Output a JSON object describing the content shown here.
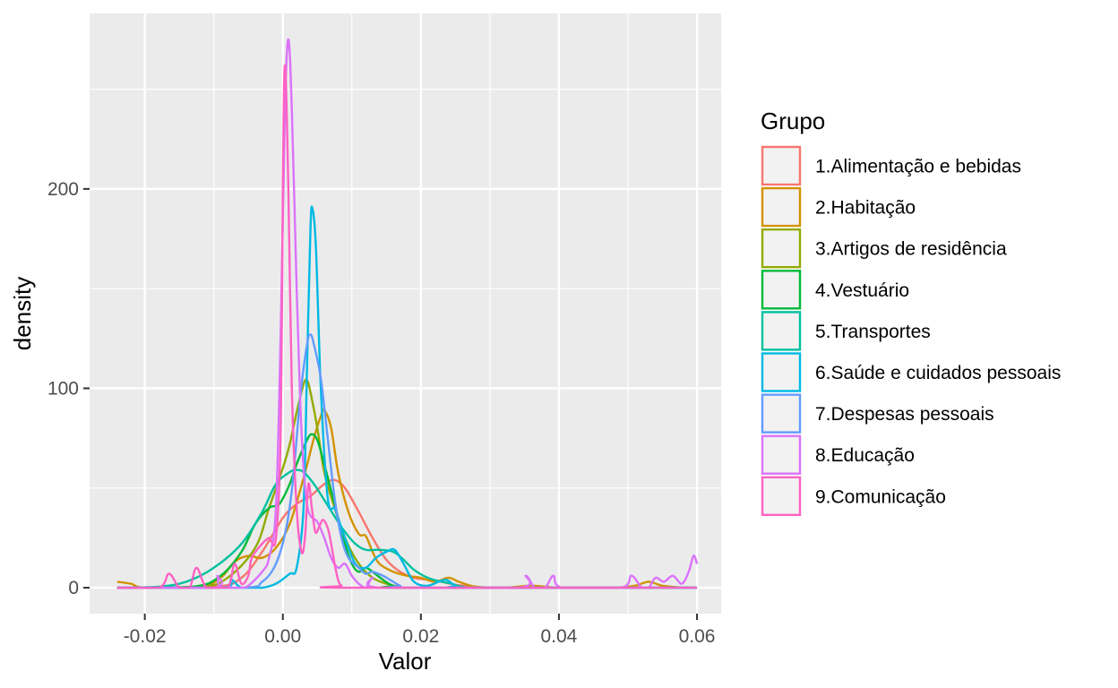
{
  "chart_data": {
    "type": "line",
    "subtype": "density",
    "xlabel": "Valor",
    "ylabel": "density",
    "xlim": [
      -0.028,
      0.0635
    ],
    "ylim": [
      -13,
      288
    ],
    "x_ticks": [
      -0.02,
      0.0,
      0.02,
      0.04,
      0.06
    ],
    "x_tick_labels": [
      "-0.02",
      "0.00",
      "0.02",
      "0.04",
      "0.06"
    ],
    "y_ticks": [
      0,
      100,
      200
    ],
    "y_tick_labels": [
      "0",
      "100",
      "200"
    ],
    "grid": true,
    "legend": {
      "title": "Grupo",
      "position": "right"
    },
    "series": [
      {
        "name": "1.Alimentação e bebidas",
        "color": "#F8766D",
        "points": [
          [
            -0.024,
            0
          ],
          [
            -0.01,
            0.5
          ],
          [
            -0.006,
            5
          ],
          [
            -0.003,
            18
          ],
          [
            0,
            35
          ],
          [
            0.002,
            42
          ],
          [
            0.004,
            46
          ],
          [
            0.006,
            52
          ],
          [
            0.0075,
            54
          ],
          [
            0.009,
            50
          ],
          [
            0.011,
            38
          ],
          [
            0.013,
            25
          ],
          [
            0.015,
            14
          ],
          [
            0.017,
            8
          ],
          [
            0.019,
            5
          ],
          [
            0.021,
            4
          ],
          [
            0.023,
            3
          ],
          [
            0.025,
            1.5
          ],
          [
            0.028,
            0.5
          ],
          [
            0.032,
            0
          ],
          [
            0.06,
            0
          ]
        ]
      },
      {
        "name": "2.Habitação",
        "color": "#D39200",
        "points": [
          [
            -0.024,
            3
          ],
          [
            -0.022,
            2
          ],
          [
            -0.02,
            0
          ],
          [
            -0.012,
            0.5
          ],
          [
            -0.009,
            5
          ],
          [
            -0.007,
            13
          ],
          [
            -0.005,
            16
          ],
          [
            -0.003,
            15
          ],
          [
            -0.001,
            20
          ],
          [
            0.001,
            32
          ],
          [
            0.003,
            55
          ],
          [
            0.0045,
            75
          ],
          [
            0.0055,
            86
          ],
          [
            0.006,
            89
          ],
          [
            0.007,
            80
          ],
          [
            0.008,
            58
          ],
          [
            0.0095,
            38
          ],
          [
            0.011,
            27
          ],
          [
            0.012,
            26
          ],
          [
            0.013,
            18
          ],
          [
            0.014,
            12
          ],
          [
            0.016,
            8
          ],
          [
            0.018,
            6
          ],
          [
            0.02,
            5
          ],
          [
            0.022,
            3
          ],
          [
            0.024,
            5
          ],
          [
            0.0255,
            3
          ],
          [
            0.028,
            0.5
          ],
          [
            0.032,
            0
          ],
          [
            0.036,
            1
          ],
          [
            0.04,
            0
          ],
          [
            0.048,
            0
          ],
          [
            0.051,
            1
          ],
          [
            0.053,
            3
          ],
          [
            0.055,
            1
          ],
          [
            0.058,
            0
          ]
        ]
      },
      {
        "name": "3.Artigos de residência",
        "color": "#93AA00",
        "points": [
          [
            -0.024,
            0
          ],
          [
            -0.012,
            0.5
          ],
          [
            -0.008,
            5
          ],
          [
            -0.004,
            20
          ],
          [
            -0.002,
            40
          ],
          [
            0,
            60
          ],
          [
            0.001,
            72
          ],
          [
            0.002,
            88
          ],
          [
            0.003,
            102
          ],
          [
            0.0035,
            104
          ],
          [
            0.004,
            98
          ],
          [
            0.005,
            80
          ],
          [
            0.006,
            58
          ],
          [
            0.0075,
            40
          ],
          [
            0.009,
            25
          ],
          [
            0.011,
            12
          ],
          [
            0.013,
            5
          ],
          [
            0.015,
            2
          ],
          [
            0.017,
            0.5
          ],
          [
            0.02,
            0
          ],
          [
            0.06,
            0
          ]
        ]
      },
      {
        "name": "4.Vestuário",
        "color": "#00BA38",
        "points": [
          [
            -0.024,
            0
          ],
          [
            -0.013,
            0.5
          ],
          [
            -0.009,
            6
          ],
          [
            -0.006,
            18
          ],
          [
            -0.004,
            32
          ],
          [
            -0.002,
            40
          ],
          [
            -0.0005,
            42
          ],
          [
            0.001,
            52
          ],
          [
            0.002,
            62
          ],
          [
            0.0035,
            74
          ],
          [
            0.0042,
            77
          ],
          [
            0.005,
            74
          ],
          [
            0.006,
            62
          ],
          [
            0.0075,
            42
          ],
          [
            0.009,
            22
          ],
          [
            0.01,
            12
          ],
          [
            0.011,
            8
          ],
          [
            0.012,
            10
          ],
          [
            0.013,
            8
          ],
          [
            0.0145,
            4
          ],
          [
            0.016,
            1
          ],
          [
            0.018,
            0
          ],
          [
            0.06,
            0
          ]
        ]
      },
      {
        "name": "5.Transportes",
        "color": "#00C19F",
        "points": [
          [
            -0.024,
            0
          ],
          [
            -0.018,
            0.5
          ],
          [
            -0.014,
            3
          ],
          [
            -0.01,
            10
          ],
          [
            -0.006,
            22
          ],
          [
            -0.003,
            38
          ],
          [
            -0.001,
            52
          ],
          [
            0.001,
            58
          ],
          [
            0.002,
            59
          ],
          [
            0.003,
            58
          ],
          [
            0.0045,
            52
          ],
          [
            0.006,
            44
          ],
          [
            0.008,
            33
          ],
          [
            0.009,
            28
          ],
          [
            0.0105,
            22
          ],
          [
            0.012,
            19
          ],
          [
            0.014,
            19
          ],
          [
            0.016,
            18
          ],
          [
            0.0175,
            14
          ],
          [
            0.019,
            9
          ],
          [
            0.021,
            5
          ],
          [
            0.023,
            3
          ],
          [
            0.0245,
            2
          ],
          [
            0.026,
            0.5
          ],
          [
            0.03,
            0
          ],
          [
            0.06,
            0
          ]
        ]
      },
      {
        "name": "6.Saúde e cuidados pessoais",
        "color": "#00B9E3",
        "points": [
          [
            -0.024,
            0
          ],
          [
            -0.009,
            0
          ],
          [
            -0.0075,
            4
          ],
          [
            -0.006,
            0
          ],
          [
            -0.003,
            0
          ],
          [
            -0.001,
            2
          ],
          [
            0.001,
            7
          ],
          [
            0.002,
            10
          ],
          [
            0.003,
            40
          ],
          [
            0.0035,
            110
          ],
          [
            0.004,
            180
          ],
          [
            0.0043,
            190
          ],
          [
            0.0048,
            170
          ],
          [
            0.0055,
            100
          ],
          [
            0.0065,
            45
          ],
          [
            0.0075,
            40
          ],
          [
            0.008,
            35
          ],
          [
            0.009,
            25
          ],
          [
            0.0105,
            12
          ],
          [
            0.012,
            10
          ],
          [
            0.0135,
            15
          ],
          [
            0.015,
            18
          ],
          [
            0.0162,
            19
          ],
          [
            0.0175,
            12
          ],
          [
            0.019,
            3
          ],
          [
            0.021,
            1
          ],
          [
            0.0235,
            4
          ],
          [
            0.025,
            1
          ],
          [
            0.027,
            0
          ],
          [
            0.06,
            0
          ]
        ]
      },
      {
        "name": "7.Despesas pessoais",
        "color": "#619CFF",
        "points": [
          [
            -0.024,
            0
          ],
          [
            -0.006,
            0
          ],
          [
            -0.003,
            3
          ],
          [
            -0.001,
            12
          ],
          [
            0.0005,
            30
          ],
          [
            0.0015,
            55
          ],
          [
            0.0025,
            95
          ],
          [
            0.0035,
            122
          ],
          [
            0.004,
            127
          ],
          [
            0.0045,
            122
          ],
          [
            0.0055,
            105
          ],
          [
            0.0065,
            75
          ],
          [
            0.0075,
            45
          ],
          [
            0.0085,
            25
          ],
          [
            0.0095,
            15
          ],
          [
            0.011,
            10
          ],
          [
            0.012,
            7
          ],
          [
            0.013,
            8
          ],
          [
            0.0145,
            6
          ],
          [
            0.016,
            3
          ],
          [
            0.017,
            1
          ],
          [
            0.019,
            0
          ],
          [
            0.06,
            0
          ]
        ]
      },
      {
        "name": "8.Educação",
        "color": "#DB72FB",
        "points": [
          [
            -0.024,
            0
          ],
          [
            -0.01,
            0
          ],
          [
            -0.0095,
            6
          ],
          [
            -0.009,
            0
          ],
          [
            -0.006,
            0
          ],
          [
            -0.005,
            1
          ],
          [
            -0.003,
            8
          ],
          [
            -0.002,
            15
          ],
          [
            -0.001,
            40
          ],
          [
            -0.0003,
            130
          ],
          [
            0.0003,
            240
          ],
          [
            0.0008,
            275
          ],
          [
            0.0013,
            240
          ],
          [
            0.002,
            150
          ],
          [
            0.0025,
            95
          ],
          [
            0.003,
            60
          ],
          [
            0.0035,
            42
          ],
          [
            0.004,
            36
          ],
          [
            0.005,
            33
          ],
          [
            0.006,
            25
          ],
          [
            0.007,
            15
          ],
          [
            0.008,
            10
          ],
          [
            0.009,
            12
          ],
          [
            0.01,
            6
          ],
          [
            0.011,
            2
          ],
          [
            0.012,
            0
          ],
          [
            0.013,
            5
          ],
          [
            0.014,
            0
          ],
          [
            0.034,
            0
          ],
          [
            0.0352,
            6
          ],
          [
            0.0365,
            0
          ],
          [
            0.038,
            0
          ],
          [
            0.0392,
            6
          ],
          [
            0.0405,
            0
          ],
          [
            0.049,
            0
          ],
          [
            0.0505,
            6
          ],
          [
            0.052,
            0
          ],
          [
            0.053,
            0
          ],
          [
            0.054,
            5
          ],
          [
            0.0552,
            3
          ],
          [
            0.0565,
            6
          ],
          [
            0.0578,
            2
          ],
          [
            0.0588,
            8
          ],
          [
            0.0595,
            16
          ],
          [
            0.06,
            12
          ]
        ]
      },
      {
        "name": "9.Comunicação",
        "color": "#FF61C3",
        "points": [
          [
            -0.024,
            0
          ],
          [
            -0.018,
            0
          ],
          [
            -0.0165,
            7
          ],
          [
            -0.015,
            0
          ],
          [
            -0.0135,
            0
          ],
          [
            -0.0125,
            10
          ],
          [
            -0.011,
            0
          ],
          [
            -0.008,
            0
          ],
          [
            -0.007,
            12
          ],
          [
            -0.006,
            2
          ],
          [
            -0.005,
            6
          ],
          [
            -0.0045,
            15
          ],
          [
            -0.003,
            22
          ],
          [
            -0.002,
            25
          ],
          [
            -0.001,
            25
          ],
          [
            -0.0003,
            80
          ],
          [
            0,
            200
          ],
          [
            0.0003,
            262
          ],
          [
            0.0008,
            200
          ],
          [
            0.0013,
            100
          ],
          [
            0.002,
            40
          ],
          [
            0.0027,
            18
          ],
          [
            0.0032,
            25
          ],
          [
            0.0037,
            52
          ],
          [
            0.0042,
            40
          ],
          [
            0.0047,
            28
          ],
          [
            0.0052,
            30
          ],
          [
            0.0058,
            34
          ],
          [
            0.0065,
            30
          ],
          [
            0.007,
            22
          ],
          [
            0.0075,
            12
          ],
          [
            0.008,
            4
          ],
          [
            0.0085,
            1
          ],
          [
            0.0095,
            0
          ],
          [
            0.06,
            0
          ]
        ]
      }
    ]
  }
}
